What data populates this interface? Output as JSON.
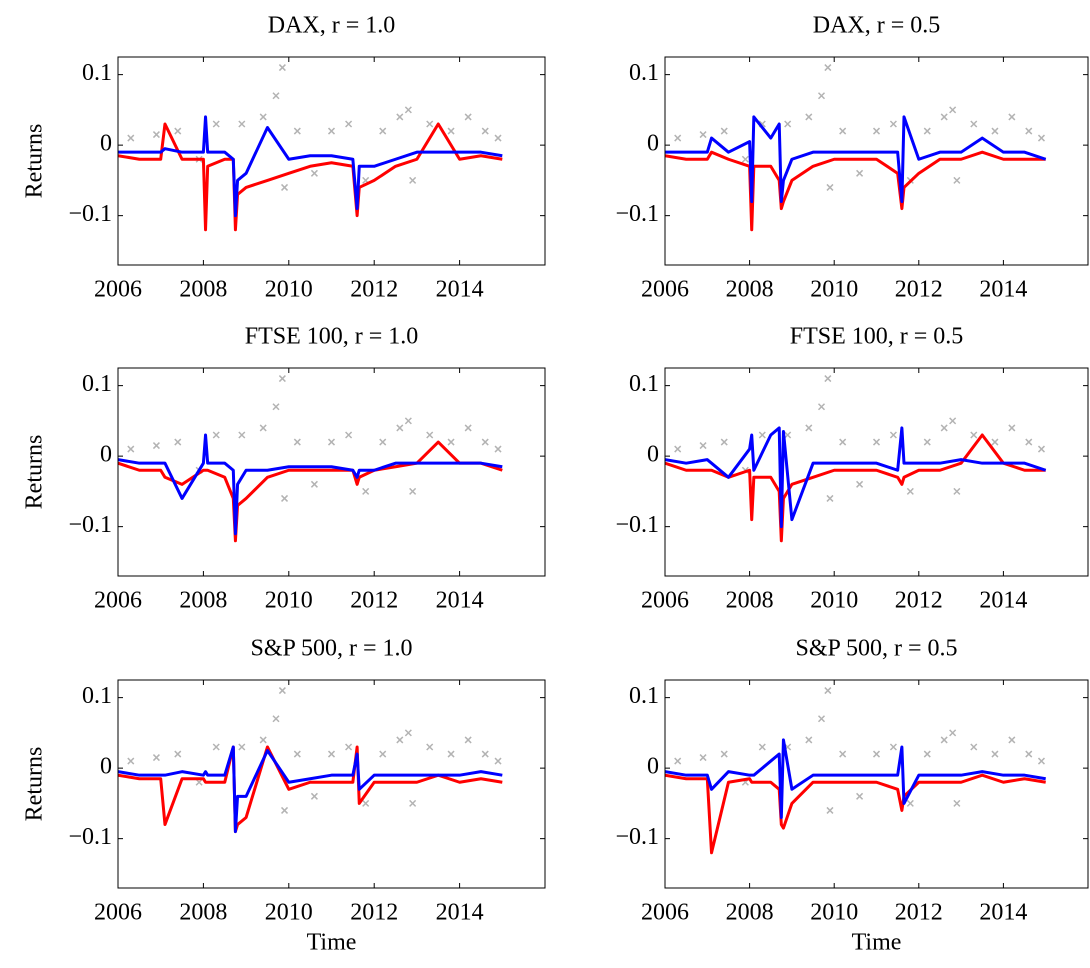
{
  "chart_data": [
    {
      "type": "line",
      "title": "DAX, r = 1.0",
      "ylabel": "Returns",
      "x": [
        2006,
        2006.5,
        2007,
        2007.1,
        2007.5,
        2008,
        2008.05,
        2008.1,
        2008.5,
        2008.7,
        2008.75,
        2008.8,
        2009,
        2009.5,
        2010,
        2010.5,
        2011,
        2011.5,
        2011.6,
        2011.65,
        2012,
        2012.5,
        2013,
        2013.5,
        2014,
        2014.5,
        2015
      ],
      "xlim": [
        2006,
        2016
      ],
      "xticks": [
        2006,
        2008,
        2010,
        2012,
        2014
      ],
      "ylim": [
        -0.17,
        0.125
      ],
      "yticks": [
        0.1,
        0,
        {
          "value": -0.1,
          "label": "−0.1"
        }
      ],
      "series": [
        {
          "color": "#b3b3b3",
          "marker": "x",
          "x": [
            2006.3,
            2006.9,
            2007.4,
            2007.9,
            2008.3,
            2008.9,
            2009.4,
            2009.7,
            2009.85,
            2009.9,
            2010.2,
            2010.6,
            2011.0,
            2011.4,
            2011.8,
            2012.2,
            2012.6,
            2012.8,
            2012.9,
            2013.3,
            2013.8,
            2014.2,
            2014.6,
            2014.9
          ],
          "values": [
            0.01,
            0.015,
            0.02,
            -0.02,
            0.03,
            0.03,
            0.04,
            0.07,
            0.11,
            -0.06,
            0.02,
            -0.04,
            0.02,
            0.03,
            -0.05,
            0.02,
            0.04,
            0.05,
            -0.05,
            0.03,
            0.02,
            0.04,
            0.02,
            0.01
          ]
        },
        {
          "color": "#ff0000",
          "values": [
            -0.015,
            -0.02,
            -0.02,
            0.03,
            -0.02,
            -0.02,
            -0.12,
            -0.03,
            -0.02,
            -0.02,
            -0.12,
            -0.07,
            -0.06,
            -0.05,
            -0.04,
            -0.03,
            -0.025,
            -0.03,
            -0.1,
            -0.06,
            -0.05,
            -0.03,
            -0.02,
            0.03,
            -0.02,
            -0.015,
            -0.02
          ]
        },
        {
          "color": "#0000ff",
          "values": [
            -0.01,
            -0.01,
            -0.01,
            -0.005,
            -0.01,
            -0.01,
            0.04,
            -0.01,
            -0.01,
            -0.02,
            -0.1,
            -0.05,
            -0.04,
            0.025,
            -0.02,
            -0.015,
            -0.015,
            -0.02,
            -0.09,
            -0.03,
            -0.03,
            -0.02,
            -0.01,
            -0.01,
            -0.01,
            -0.01,
            -0.015
          ]
        }
      ]
    },
    {
      "type": "line",
      "title": "DAX, r = 0.5",
      "x": [
        2006,
        2006.5,
        2007,
        2007.1,
        2007.5,
        2008,
        2008.05,
        2008.1,
        2008.5,
        2008.7,
        2008.75,
        2008.8,
        2009,
        2009.5,
        2010,
        2010.5,
        2011,
        2011.5,
        2011.6,
        2011.65,
        2012,
        2012.5,
        2013,
        2013.5,
        2014,
        2014.5,
        2015
      ],
      "xlim": [
        2006,
        2016
      ],
      "xticks": [
        2006,
        2008,
        2010,
        2012,
        2014
      ],
      "ylim": [
        -0.17,
        0.125
      ],
      "yticks": [
        0.1,
        0,
        {
          "value": -0.1,
          "label": "−0.1"
        }
      ],
      "series": [
        {
          "color": "#b3b3b3",
          "marker": "x",
          "x": [
            2006.3,
            2006.9,
            2007.4,
            2007.9,
            2008.3,
            2008.9,
            2009.4,
            2009.7,
            2009.85,
            2009.9,
            2010.2,
            2010.6,
            2011.0,
            2011.4,
            2011.8,
            2012.2,
            2012.6,
            2012.8,
            2012.9,
            2013.3,
            2013.8,
            2014.2,
            2014.6,
            2014.9
          ],
          "values": [
            0.01,
            0.015,
            0.02,
            -0.02,
            0.03,
            0.03,
            0.04,
            0.07,
            0.11,
            -0.06,
            0.02,
            -0.04,
            0.02,
            0.03,
            -0.05,
            0.02,
            0.04,
            0.05,
            -0.05,
            0.03,
            0.02,
            0.04,
            0.02,
            0.01
          ]
        },
        {
          "color": "#ff0000",
          "values": [
            -0.015,
            -0.02,
            -0.02,
            -0.01,
            -0.02,
            -0.03,
            -0.12,
            -0.03,
            -0.03,
            -0.05,
            -0.09,
            -0.08,
            -0.05,
            -0.03,
            -0.02,
            -0.02,
            -0.02,
            -0.04,
            -0.09,
            -0.06,
            -0.04,
            -0.02,
            -0.02,
            -0.01,
            -0.02,
            -0.02,
            -0.02
          ]
        },
        {
          "color": "#0000ff",
          "values": [
            -0.01,
            -0.01,
            -0.01,
            0.01,
            -0.01,
            0.005,
            -0.08,
            0.04,
            0.01,
            0.03,
            -0.08,
            -0.05,
            -0.02,
            -0.01,
            -0.01,
            -0.01,
            -0.01,
            -0.01,
            -0.08,
            0.04,
            -0.02,
            -0.01,
            -0.01,
            0.01,
            -0.01,
            -0.01,
            -0.02
          ]
        }
      ]
    },
    {
      "type": "line",
      "title": "FTSE 100, r = 1.0",
      "ylabel": "Returns",
      "x": [
        2006,
        2006.5,
        2007,
        2007.1,
        2007.5,
        2008,
        2008.05,
        2008.1,
        2008.5,
        2008.7,
        2008.75,
        2008.8,
        2009,
        2009.5,
        2010,
        2010.5,
        2011,
        2011.5,
        2011.6,
        2011.65,
        2012,
        2012.5,
        2013,
        2013.5,
        2014,
        2014.5,
        2015
      ],
      "xlim": [
        2006,
        2016
      ],
      "xticks": [
        2006,
        2008,
        2010,
        2012,
        2014
      ],
      "ylim": [
        -0.17,
        0.125
      ],
      "yticks": [
        0.1,
        0,
        {
          "value": -0.1,
          "label": "−0.1"
        }
      ],
      "series": [
        {
          "color": "#b3b3b3",
          "marker": "x",
          "x": [
            2006.3,
            2006.9,
            2007.4,
            2007.9,
            2008.3,
            2008.9,
            2009.4,
            2009.7,
            2009.85,
            2009.9,
            2010.2,
            2010.6,
            2011.0,
            2011.4,
            2011.8,
            2012.2,
            2012.6,
            2012.8,
            2012.9,
            2013.3,
            2013.8,
            2014.2,
            2014.6,
            2014.9
          ],
          "values": [
            0.01,
            0.015,
            0.02,
            -0.02,
            0.03,
            0.03,
            0.04,
            0.07,
            0.11,
            -0.06,
            0.02,
            -0.04,
            0.02,
            0.03,
            -0.05,
            0.02,
            0.04,
            0.05,
            -0.05,
            0.03,
            0.02,
            0.04,
            0.02,
            0.01
          ]
        },
        {
          "color": "#ff0000",
          "values": [
            -0.01,
            -0.02,
            -0.02,
            -0.03,
            -0.04,
            -0.02,
            -0.02,
            -0.02,
            -0.03,
            -0.06,
            -0.12,
            -0.07,
            -0.06,
            -0.03,
            -0.02,
            -0.02,
            -0.02,
            -0.02,
            -0.04,
            -0.03,
            -0.02,
            -0.015,
            -0.01,
            0.02,
            -0.01,
            -0.01,
            -0.02
          ]
        },
        {
          "color": "#0000ff",
          "values": [
            -0.005,
            -0.01,
            -0.01,
            -0.01,
            -0.06,
            -0.01,
            0.03,
            -0.01,
            -0.01,
            -0.02,
            -0.11,
            -0.04,
            -0.02,
            -0.02,
            -0.015,
            -0.015,
            -0.015,
            -0.02,
            -0.03,
            -0.02,
            -0.02,
            -0.01,
            -0.01,
            -0.01,
            -0.01,
            -0.01,
            -0.015
          ]
        }
      ]
    },
    {
      "type": "line",
      "title": "FTSE 100, r = 0.5",
      "x": [
        2006,
        2006.5,
        2007,
        2007.1,
        2007.5,
        2008,
        2008.05,
        2008.1,
        2008.5,
        2008.7,
        2008.75,
        2008.8,
        2009,
        2009.5,
        2010,
        2010.5,
        2011,
        2011.5,
        2011.6,
        2011.65,
        2012,
        2012.5,
        2013,
        2013.5,
        2014,
        2014.5,
        2015
      ],
      "xlim": [
        2006,
        2016
      ],
      "xticks": [
        2006,
        2008,
        2010,
        2012,
        2014
      ],
      "ylim": [
        -0.17,
        0.125
      ],
      "yticks": [
        0.1,
        0,
        {
          "value": -0.1,
          "label": "−0.1"
        }
      ],
      "series": [
        {
          "color": "#b3b3b3",
          "marker": "x",
          "x": [
            2006.3,
            2006.9,
            2007.4,
            2007.9,
            2008.3,
            2008.9,
            2009.4,
            2009.7,
            2009.85,
            2009.9,
            2010.2,
            2010.6,
            2011.0,
            2011.4,
            2011.8,
            2012.2,
            2012.6,
            2012.8,
            2012.9,
            2013.3,
            2013.8,
            2014.2,
            2014.6,
            2014.9
          ],
          "values": [
            0.01,
            0.015,
            0.02,
            -0.02,
            0.03,
            0.03,
            0.04,
            0.07,
            0.11,
            -0.06,
            0.02,
            -0.04,
            0.02,
            0.03,
            -0.05,
            0.02,
            0.04,
            0.05,
            -0.05,
            0.03,
            0.02,
            0.04,
            0.02,
            0.01
          ]
        },
        {
          "color": "#ff0000",
          "values": [
            -0.01,
            -0.02,
            -0.02,
            -0.02,
            -0.03,
            -0.02,
            -0.09,
            -0.03,
            -0.03,
            -0.05,
            -0.12,
            -0.06,
            -0.04,
            -0.03,
            -0.02,
            -0.02,
            -0.02,
            -0.03,
            -0.04,
            -0.03,
            -0.02,
            -0.02,
            -0.01,
            0.03,
            -0.01,
            -0.02,
            -0.02
          ]
        },
        {
          "color": "#0000ff",
          "values": [
            -0.005,
            -0.01,
            -0.005,
            -0.01,
            -0.03,
            0.01,
            0.03,
            -0.02,
            0.03,
            0.04,
            -0.1,
            0.035,
            -0.09,
            -0.01,
            -0.01,
            -0.01,
            -0.01,
            -0.02,
            0.04,
            -0.01,
            -0.01,
            -0.01,
            -0.005,
            -0.01,
            -0.01,
            -0.01,
            -0.02
          ]
        }
      ]
    },
    {
      "type": "line",
      "title": "S&P 500, r = 1.0",
      "ylabel": "Returns",
      "xlabel": "Time",
      "x": [
        2006,
        2006.5,
        2007,
        2007.1,
        2007.5,
        2008,
        2008.05,
        2008.1,
        2008.5,
        2008.7,
        2008.75,
        2008.8,
        2009,
        2009.5,
        2010,
        2010.5,
        2011,
        2011.5,
        2011.6,
        2011.65,
        2012,
        2012.5,
        2013,
        2013.5,
        2014,
        2014.5,
        2015
      ],
      "xlim": [
        2006,
        2016
      ],
      "xticks": [
        2006,
        2008,
        2010,
        2012,
        2014
      ],
      "ylim": [
        -0.17,
        0.125
      ],
      "yticks": [
        0.1,
        0,
        {
          "value": -0.1,
          "label": "−0.1"
        }
      ],
      "series": [
        {
          "color": "#b3b3b3",
          "marker": "x",
          "x": [
            2006.3,
            2006.9,
            2007.4,
            2007.9,
            2008.3,
            2008.9,
            2009.4,
            2009.7,
            2009.85,
            2009.9,
            2010.2,
            2010.6,
            2011.0,
            2011.4,
            2011.8,
            2012.2,
            2012.6,
            2012.8,
            2012.9,
            2013.3,
            2013.8,
            2014.2,
            2014.6,
            2014.9
          ],
          "values": [
            0.01,
            0.015,
            0.02,
            -0.02,
            0.03,
            0.03,
            0.04,
            0.07,
            0.11,
            -0.06,
            0.02,
            -0.04,
            0.02,
            0.03,
            -0.05,
            0.02,
            0.04,
            0.05,
            -0.05,
            0.03,
            0.02,
            0.04,
            0.02,
            0.01
          ]
        },
        {
          "color": "#ff0000",
          "values": [
            -0.01,
            -0.015,
            -0.015,
            -0.08,
            -0.015,
            -0.015,
            -0.02,
            -0.02,
            -0.02,
            0.03,
            -0.09,
            -0.08,
            -0.07,
            0.03,
            -0.03,
            -0.02,
            -0.02,
            -0.02,
            0.03,
            -0.05,
            -0.02,
            -0.02,
            -0.02,
            -0.01,
            -0.02,
            -0.015,
            -0.02
          ]
        },
        {
          "color": "#0000ff",
          "values": [
            -0.005,
            -0.01,
            -0.01,
            -0.01,
            -0.005,
            -0.01,
            -0.005,
            -0.01,
            -0.01,
            0.03,
            -0.09,
            -0.04,
            -0.04,
            0.025,
            -0.02,
            -0.015,
            -0.01,
            -0.01,
            0.02,
            -0.03,
            -0.01,
            -0.01,
            -0.01,
            -0.01,
            -0.01,
            -0.005,
            -0.01
          ]
        }
      ]
    },
    {
      "type": "line",
      "title": "S&P 500, r = 0.5",
      "xlabel": "Time",
      "x": [
        2006,
        2006.5,
        2007,
        2007.1,
        2007.5,
        2008,
        2008.05,
        2008.1,
        2008.5,
        2008.7,
        2008.75,
        2008.8,
        2009,
        2009.5,
        2010,
        2010.5,
        2011,
        2011.5,
        2011.6,
        2011.65,
        2012,
        2012.5,
        2013,
        2013.5,
        2014,
        2014.5,
        2015
      ],
      "xlim": [
        2006,
        2016
      ],
      "xticks": [
        2006,
        2008,
        2010,
        2012,
        2014
      ],
      "ylim": [
        -0.17,
        0.125
      ],
      "yticks": [
        0.1,
        0,
        {
          "value": -0.1,
          "label": "−0.1"
        }
      ],
      "series": [
        {
          "color": "#b3b3b3",
          "marker": "x",
          "x": [
            2006.3,
            2006.9,
            2007.4,
            2007.9,
            2008.3,
            2008.9,
            2009.4,
            2009.7,
            2009.85,
            2009.9,
            2010.2,
            2010.6,
            2011.0,
            2011.4,
            2011.8,
            2012.2,
            2012.6,
            2012.8,
            2012.9,
            2013.3,
            2013.8,
            2014.2,
            2014.6,
            2014.9
          ],
          "values": [
            0.01,
            0.015,
            0.02,
            -0.02,
            0.03,
            0.03,
            0.04,
            0.07,
            0.11,
            -0.06,
            0.02,
            -0.04,
            0.02,
            0.03,
            -0.05,
            0.02,
            0.04,
            0.05,
            -0.05,
            0.03,
            0.02,
            0.04,
            0.02,
            0.01
          ]
        },
        {
          "color": "#ff0000",
          "values": [
            -0.01,
            -0.015,
            -0.015,
            -0.12,
            -0.02,
            -0.015,
            -0.02,
            -0.02,
            -0.02,
            -0.03,
            -0.08,
            -0.085,
            -0.05,
            -0.02,
            -0.02,
            -0.02,
            -0.02,
            -0.03,
            -0.06,
            -0.04,
            -0.02,
            -0.02,
            -0.02,
            -0.01,
            -0.02,
            -0.015,
            -0.02
          ]
        },
        {
          "color": "#0000ff",
          "values": [
            -0.005,
            -0.01,
            -0.01,
            -0.03,
            -0.005,
            -0.01,
            -0.01,
            -0.01,
            0.01,
            0.02,
            -0.07,
            0.04,
            -0.03,
            -0.01,
            -0.01,
            -0.01,
            -0.01,
            -0.01,
            0.03,
            -0.05,
            -0.01,
            -0.01,
            -0.01,
            -0.005,
            -0.01,
            -0.01,
            -0.015
          ]
        }
      ]
    }
  ]
}
